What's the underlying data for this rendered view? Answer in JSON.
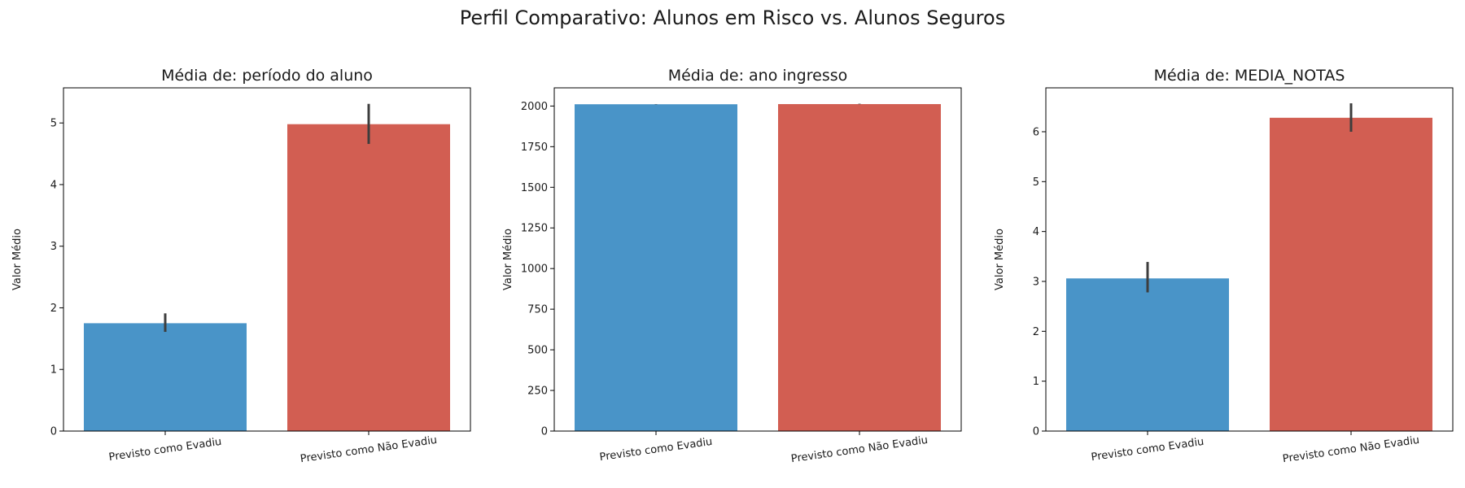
{
  "suptitle": "Perfil Comparativo: Alunos em Risco vs. Alunos Seguros",
  "colors": {
    "series_a": "#4994c8",
    "series_b": "#d25e52",
    "error_bar": "#3d3d3d"
  },
  "chart_data": [
    {
      "type": "bar",
      "title": "Média de: período do aluno",
      "xlabel": "",
      "ylabel": "Valor Médio",
      "categories": [
        "Previsto como Evadiu",
        "Previsto como Não Evadiu"
      ],
      "values": [
        1.75,
        4.98
      ],
      "error_low": [
        1.61,
        4.66
      ],
      "error_high": [
        1.91,
        5.31
      ],
      "ylim": [
        0,
        5.57
      ],
      "yticks": [
        0,
        1,
        2,
        3,
        4,
        5
      ],
      "ytick_labels": [
        "0",
        "1",
        "2",
        "3",
        "4",
        "5"
      ],
      "grid": false
    },
    {
      "type": "bar",
      "title": "Média de: ano ingresso",
      "xlabel": "",
      "ylabel": "Valor Médio",
      "categories": [
        "Previsto como Evadiu",
        "Previsto como Não Evadiu"
      ],
      "values": [
        2011,
        2012
      ],
      "error_low": [
        2010,
        2011
      ],
      "error_high": [
        2012,
        2014
      ],
      "ylim": [
        0,
        2112
      ],
      "yticks": [
        0,
        250,
        500,
        750,
        1000,
        1250,
        1500,
        1750,
        2000
      ],
      "ytick_labels": [
        "0",
        "250",
        "500",
        "750",
        "1000",
        "1250",
        "1500",
        "1750",
        "2000"
      ],
      "grid": false
    },
    {
      "type": "bar",
      "title": "Média de: MEDIA_NOTAS",
      "xlabel": "",
      "ylabel": "Valor Médio",
      "categories": [
        "Previsto como Evadiu",
        "Previsto como Não Evadiu"
      ],
      "values": [
        3.06,
        6.28
      ],
      "error_low": [
        2.78,
        6.0
      ],
      "error_high": [
        3.39,
        6.57
      ],
      "ylim": [
        0,
        6.88
      ],
      "yticks": [
        0,
        1,
        2,
        3,
        4,
        5,
        6
      ],
      "ytick_labels": [
        "0",
        "1",
        "2",
        "3",
        "4",
        "5",
        "6"
      ],
      "grid": false
    }
  ]
}
